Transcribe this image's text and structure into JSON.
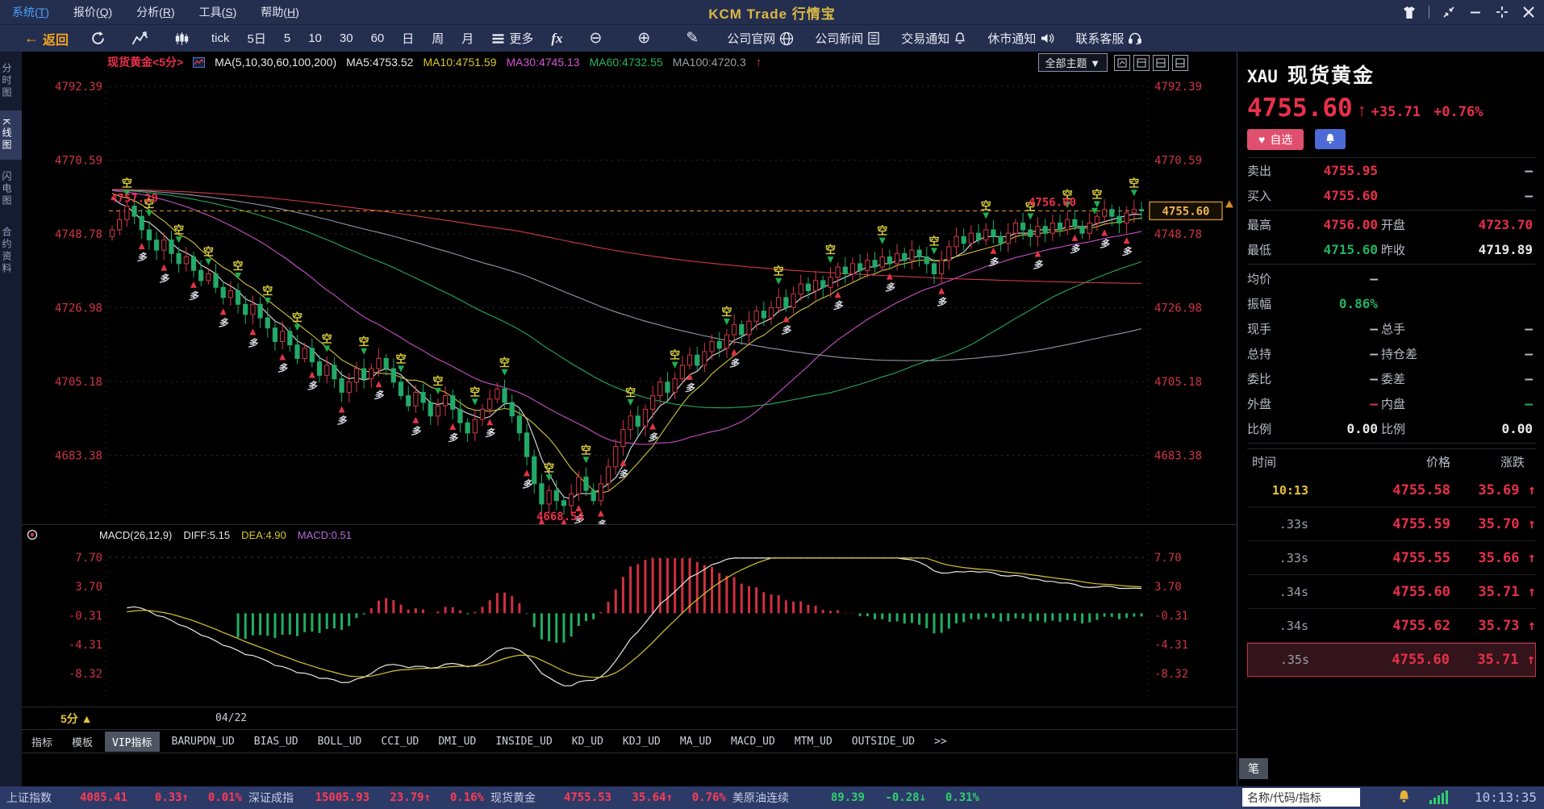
{
  "window": {
    "title": "KCM Trade 行情宝",
    "menus": [
      {
        "label": "系统",
        "hotkey": "T",
        "active": true
      },
      {
        "label": "报价",
        "hotkey": "Q",
        "active": false
      },
      {
        "label": "分析",
        "hotkey": "R",
        "active": false
      },
      {
        "label": "工具",
        "hotkey": "S",
        "active": false
      },
      {
        "label": "帮助",
        "hotkey": "H",
        "active": false
      }
    ],
    "controls": [
      "theme",
      "collapse",
      "minimize",
      "maximize",
      "close"
    ]
  },
  "toolbar": {
    "back_label": "返回",
    "icon_buttons": [
      "refresh-icon",
      "line-chart-icon",
      "candle-chart-icon"
    ],
    "periods": [
      "tick",
      "5日",
      "5",
      "10",
      "30",
      "60",
      "日",
      "周",
      "月"
    ],
    "more_label": "更多",
    "fx_label": "fx",
    "tool_glyphs": {
      "zoom_out": "⊖",
      "zoom_in": "⊕",
      "draw": "✎"
    },
    "links": [
      {
        "label": "公司官网",
        "icon": "globe-icon"
      },
      {
        "label": "公司新闻",
        "icon": "news-icon"
      },
      {
        "label": "交易通知",
        "icon": "bell-icon"
      },
      {
        "label": "休市通知",
        "icon": "speaker-icon"
      },
      {
        "label": "联系客服",
        "icon": "headset-icon"
      }
    ]
  },
  "sidebar": {
    "items": [
      {
        "label": "分时图",
        "active": false
      },
      {
        "label": "K线图",
        "active": true
      },
      {
        "label": "闪电图",
        "active": false
      },
      {
        "label": "合约资料",
        "active": false
      }
    ]
  },
  "chart_header": {
    "symbol": "现货黄金<5分>",
    "ma_group": "MA(5,10,30,60,100,200)",
    "ma_values": [
      {
        "label": "MA5:4753.52",
        "color": "#e8e8e8"
      },
      {
        "label": "MA10:4751.59",
        "color": "#d6c62f"
      },
      {
        "label": "MA30:4745.13",
        "color": "#d653d6"
      },
      {
        "label": "MA60:4732.55",
        "color": "#27b35c"
      },
      {
        "label": "MA100:4720.3",
        "color": "#9aa0a6"
      }
    ],
    "theme_select": "全部主题 ▼"
  },
  "chart_data": {
    "type": "candlestick+macd",
    "title": "现货黄金<5分>",
    "period": "5分",
    "x_date_label": "04/22",
    "y_ticks": [
      4792.39,
      4770.59,
      4748.78,
      4726.98,
      4705.18,
      4683.38
    ],
    "macd_ticks": [
      7.7,
      3.7,
      -0.31,
      -4.31,
      -8.32
    ],
    "closes": [
      4750,
      4753,
      4757,
      4754,
      4750,
      4747,
      4744,
      4747,
      4743,
      4740,
      4742,
      4738,
      4735,
      4737,
      4733,
      4730,
      4732,
      4728,
      4725,
      4728,
      4724,
      4721,
      4717,
      4720,
      4716,
      4712,
      4715,
      4711,
      4707,
      4710,
      4706,
      4702,
      4705,
      4709,
      4706,
      4709,
      4712,
      4709,
      4705,
      4701,
      4698,
      4702,
      4699,
      4695,
      4698,
      4701,
      4697,
      4693,
      4690,
      4694,
      4697,
      4700,
      4703,
      4699,
      4695,
      4690,
      4683,
      4675,
      4669,
      4673,
      4670,
      4668.54,
      4672,
      4677,
      4673,
      4670,
      4675,
      4680,
      4686,
      4691,
      4695,
      4692,
      4697,
      4701,
      4705,
      4702,
      4706,
      4710,
      4713,
      4710,
      4714,
      4717,
      4715,
      4719,
      4722,
      4719,
      4723,
      4726,
      4724,
      4727,
      4730,
      4727,
      4731,
      4734,
      4732,
      4735,
      4733,
      4736,
      4739,
      4737,
      4740,
      4738,
      4741,
      4739,
      4742,
      4740,
      4743,
      4741,
      4744,
      4742,
      4740,
      4737,
      4741,
      4745,
      4748,
      4746,
      4749,
      4747,
      4750,
      4748,
      4746,
      4749,
      4752,
      4750,
      4748,
      4751,
      4749,
      4752,
      4750,
      4753,
      4751,
      4749,
      4752,
      4754,
      4756,
      4754,
      4752,
      4755,
      4756,
      4755.6
    ],
    "ma_windows": [
      5,
      10,
      30,
      60,
      100,
      200
    ],
    "ma_colors": [
      "#e0e0e0",
      "#cfc43a",
      "#c94fc9",
      "#2aa85e",
      "#8f9aa6",
      "#d23a4a"
    ],
    "ma_pad_value": 4762,
    "macd_header": {
      "params": "MACD(26,12,9)",
      "diff": "DIFF:5.15",
      "dea": "DEA:4.90",
      "macd": "MACD:0.51",
      "diff_color": "#e8e8e8",
      "dea_color": "#d6c62f",
      "macd_color": "#b36bd9"
    },
    "annotations": {
      "swing_high_left": "4757.29",
      "swing_high_right": "4756.00",
      "swing_low": "4668.54",
      "current_price": "4755.60",
      "current_price_value": 4755.6
    },
    "signals": {
      "short_label": "空",
      "long_label": "多",
      "short_indices": [
        2,
        5,
        9,
        13,
        17,
        21,
        25,
        29,
        34,
        39,
        44,
        49,
        53,
        59,
        64,
        70,
        76,
        83,
        90,
        97,
        104,
        111,
        118,
        124,
        129,
        133,
        138
      ],
      "long_indices": [
        4,
        7,
        11,
        15,
        19,
        23,
        27,
        31,
        36,
        41,
        46,
        51,
        56,
        58,
        61,
        63,
        66,
        69,
        73,
        78,
        84,
        91,
        98,
        105,
        112,
        119,
        125,
        130,
        134,
        137
      ]
    },
    "colors": {
      "up": "#d23848",
      "down": "#23a968",
      "axis_label": "#cd3545",
      "price_line": "#d08a2a",
      "macd_up": "#d03040",
      "macd_down": "#1fae62",
      "diff_line": "#e8e8e8",
      "dea_line": "#d6c62f"
    }
  },
  "indicator_tabs": {
    "items": [
      "指标",
      "模板",
      "VIP指标",
      "BARUPDN_UD",
      "BIAS_UD",
      "BOLL_UD",
      "CCI_UD",
      "DMI_UD",
      "INSIDE_UD",
      "KD_UD",
      "KDJ_UD",
      "MA_UD",
      "MACD_UD",
      "MTM_UD",
      "OUTSIDE_UD",
      ">>"
    ],
    "active": "VIP指标"
  },
  "quote_panel": {
    "code": "XAU",
    "name": "现货黄金",
    "price": "4755.60",
    "direction": "up",
    "change": "+35.71",
    "change_pct": "+0.76%",
    "fav_label": "自选",
    "rows": [
      {
        "cells": [
          {
            "label": "卖出",
            "value": "4755.95",
            "color": "red"
          },
          {
            "label": "",
            "value": "—",
            "color": "gray"
          }
        ]
      },
      {
        "cells": [
          {
            "label": "买入",
            "value": "4755.60",
            "color": "red"
          },
          {
            "label": "",
            "value": "—",
            "color": "gray"
          }
        ],
        "divider_after": true
      },
      {
        "cells": [
          {
            "label": "最高",
            "value": "4756.00",
            "color": "red"
          },
          {
            "label": "开盘",
            "value": "4723.70",
            "color": "red"
          }
        ]
      },
      {
        "cells": [
          {
            "label": "最低",
            "value": "4715.60",
            "color": "green"
          },
          {
            "label": "昨收",
            "value": "4719.89",
            "color": "white"
          }
        ],
        "divider_after": true
      },
      {
        "cells": [
          {
            "label": "均价",
            "value": "—",
            "color": "gray"
          },
          {
            "label": "",
            "value": "",
            "color": "gray"
          }
        ]
      },
      {
        "cells": [
          {
            "label": "振幅",
            "value": "0.86%",
            "color": "green"
          },
          {
            "label": "",
            "value": "",
            "color": "gray"
          }
        ]
      },
      {
        "cells": [
          {
            "label": "现手",
            "value": "—",
            "color": "gray"
          },
          {
            "label": "总手",
            "value": "—",
            "color": "gray"
          }
        ]
      },
      {
        "cells": [
          {
            "label": "总持",
            "value": "—",
            "color": "gray"
          },
          {
            "label": "持仓差",
            "value": "—",
            "color": "gray"
          }
        ]
      },
      {
        "cells": [
          {
            "label": "委比",
            "value": "—",
            "color": "gray"
          },
          {
            "label": "委差",
            "value": "—",
            "color": "gray"
          }
        ]
      },
      {
        "cells": [
          {
            "label": "外盘",
            "value": "—",
            "color": "red"
          },
          {
            "label": "内盘",
            "value": "—",
            "color": "green"
          }
        ]
      },
      {
        "cells": [
          {
            "label": "比例",
            "value": "0.00",
            "color": "white"
          },
          {
            "label": "比例",
            "value": "0.00",
            "color": "white"
          }
        ],
        "divider_after": true
      }
    ]
  },
  "tick_table": {
    "headers": [
      "时间",
      "价格",
      "涨跌"
    ],
    "rows": [
      {
        "time": "10:13",
        "price": "4755.58",
        "change": "35.69",
        "dir": "up",
        "clock": true,
        "highlight": false
      },
      {
        "time": ".33s",
        "price": "4755.59",
        "change": "35.70",
        "dir": "up",
        "clock": false,
        "highlight": false
      },
      {
        "time": ".33s",
        "price": "4755.55",
        "change": "35.66",
        "dir": "up",
        "clock": false,
        "highlight": false
      },
      {
        "time": ".34s",
        "price": "4755.60",
        "change": "35.71",
        "dir": "up",
        "clock": false,
        "highlight": false
      },
      {
        "time": ".34s",
        "price": "4755.62",
        "change": "35.73",
        "dir": "up",
        "clock": false,
        "highlight": false
      },
      {
        "time": ".35s",
        "price": "4755.60",
        "change": "35.71",
        "dir": "up",
        "clock": false,
        "highlight": true
      }
    ],
    "corner_tab": "笔"
  },
  "status_bar": {
    "segments": [
      {
        "name": "上证指数",
        "value": "4085.41",
        "change": "0.33",
        "dir": "up",
        "pct": "0.01%",
        "color": "#ff3b52"
      },
      {
        "name": "深证成指",
        "value": "15005.93",
        "change": "23.79",
        "dir": "up",
        "pct": "0.16%",
        "color": "#ff3b52"
      },
      {
        "name": "现货黄金",
        "value": "4755.53",
        "change": "35.64",
        "dir": "up",
        "pct": "0.76%",
        "color": "#ff3b52"
      },
      {
        "name": "美原油连续",
        "value": "89.39",
        "change": "-0.28",
        "dir": "down",
        "pct": "0.31%",
        "color": "#2fd06e"
      }
    ],
    "search_placeholder": "名称/代码/指标",
    "clock": "10:13:35"
  }
}
